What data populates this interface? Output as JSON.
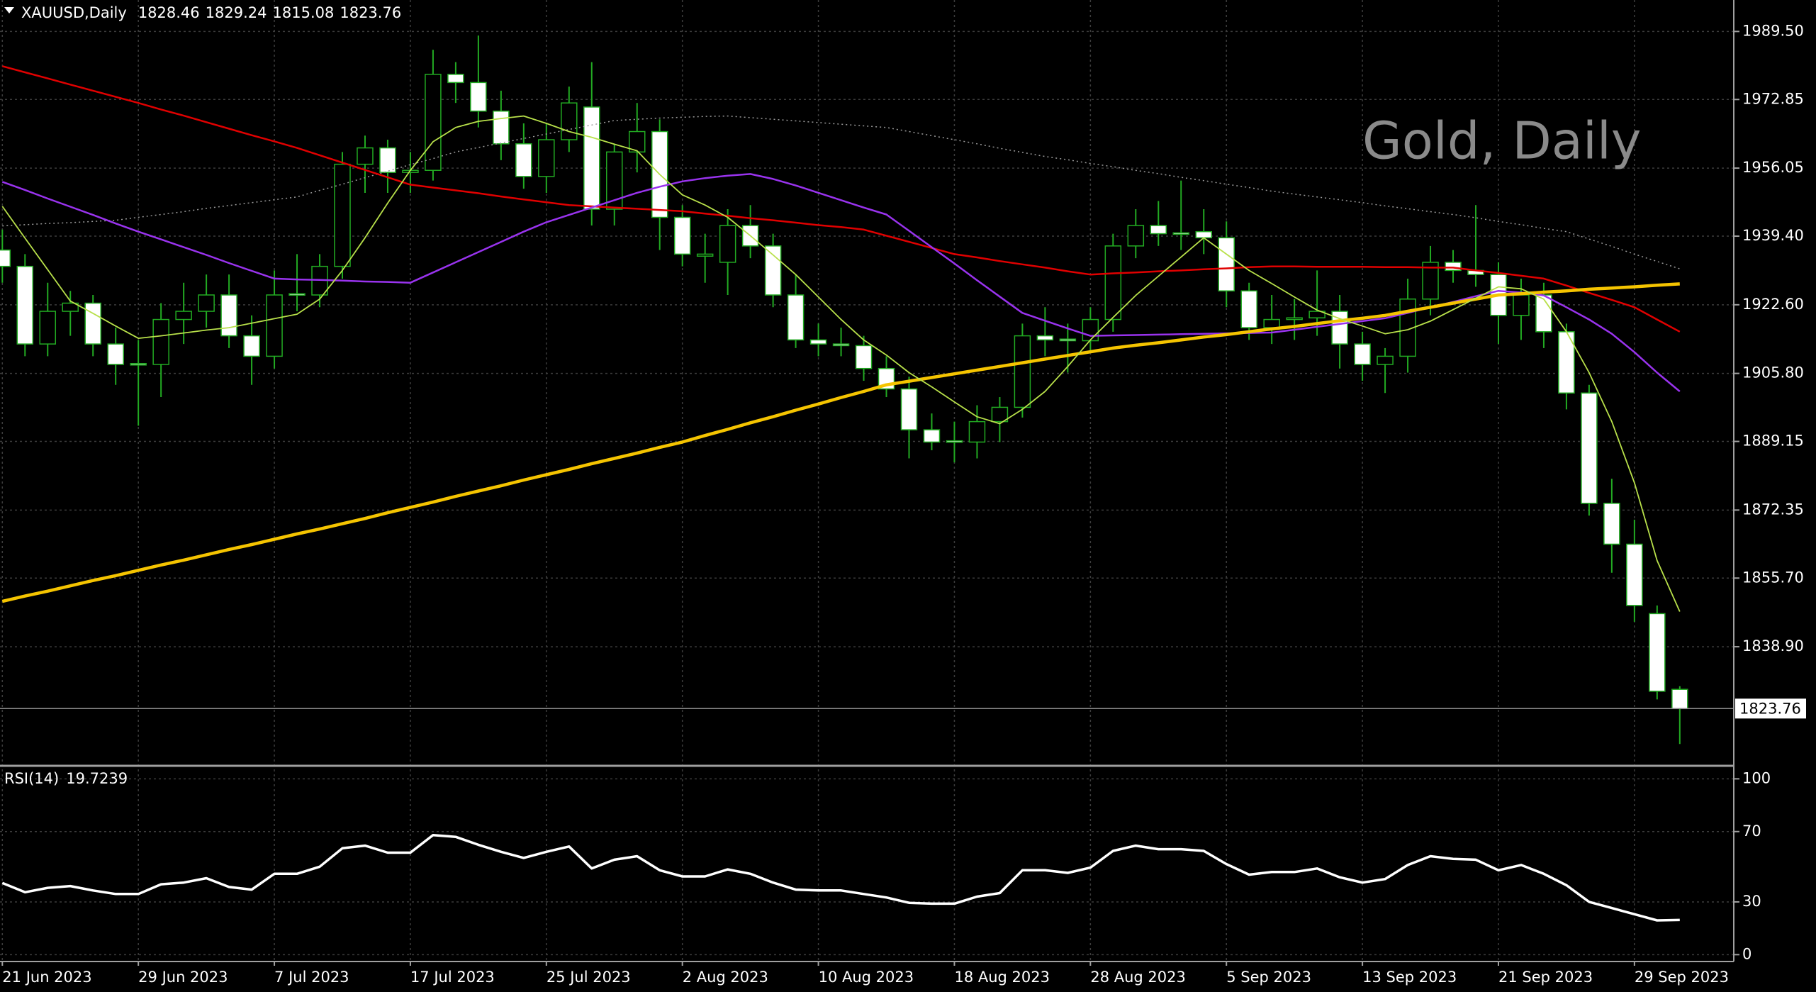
{
  "chart_data": {
    "type": "candlestick",
    "symbol": "XAUUSD,Daily",
    "annotation": "Gold, Daily",
    "categories": [
      "21 Jun 2023",
      null,
      null,
      null,
      null,
      null,
      "29 Jun 2023",
      null,
      null,
      null,
      null,
      null,
      "7 Jul 2023",
      null,
      null,
      null,
      null,
      null,
      "17 Jul 2023",
      null,
      null,
      null,
      null,
      null,
      "25 Jul 2023",
      null,
      null,
      null,
      null,
      null,
      "2 Aug 2023",
      null,
      null,
      null,
      null,
      null,
      "10 Aug 2023",
      null,
      null,
      null,
      null,
      null,
      "18 Aug 2023",
      null,
      null,
      null,
      null,
      null,
      "28 Aug 2023",
      null,
      null,
      null,
      null,
      null,
      "5 Sep 2023",
      null,
      null,
      null,
      null,
      null,
      "13 Sep 2023",
      null,
      null,
      null,
      null,
      null,
      "21 Sep 2023",
      null,
      null,
      null,
      null,
      null,
      "29 Sep 2023",
      null,
      null
    ],
    "open": [
      1936,
      1932,
      1913,
      1921,
      1923,
      1913,
      1908.2,
      1908,
      1919,
      1921,
      1925,
      1915,
      1910,
      1925.3,
      1925,
      1932,
      1957,
      1961,
      1955,
      1955.5,
      1979,
      1977,
      1970,
      1962,
      1954,
      1963,
      1971,
      1946,
      1960,
      1965,
      1944,
      1934.5,
      1933,
      1942,
      1937,
      1925,
      1914,
      1913,
      1912.6,
      1907,
      1902,
      1892,
      1889.3,
      1889,
      1894,
      1897.5,
      1915,
      1914.2,
      1913.8,
      1919,
      1937,
      1942,
      1940.2,
      1940.5,
      1939,
      1926,
      1917,
      1919,
      1919.4,
      1921,
      1913,
      1908,
      1910,
      1924,
      1933,
      1931,
      1930,
      1920,
      1925,
      1916,
      1901,
      1874,
      1864,
      1847,
      1828.46
    ],
    "high": [
      1941,
      1935,
      1928,
      1926,
      1925,
      1917,
      1914,
      1923,
      1928,
      1930,
      1930,
      1920,
      1931,
      1935,
      1935,
      1960,
      1964,
      1963,
      1960,
      1985,
      1982,
      1988.5,
      1975,
      1967,
      1967,
      1976,
      1982,
      1962,
      1972,
      1968,
      1947,
      1940,
      1946,
      1947,
      1940,
      1930,
      1918,
      1917,
      1915,
      1910,
      1905,
      1896,
      1894,
      1898,
      1900,
      1918,
      1922,
      1918,
      1922,
      1940,
      1946,
      1948,
      1953,
      1946,
      1943,
      1928,
      1925,
      1924,
      1931,
      1925,
      1916,
      1912,
      1929,
      1937,
      1936,
      1947,
      1933,
      1929,
      1928,
      1918,
      1903,
      1880,
      1870,
      1849,
      1829.24
    ],
    "low": [
      1928,
      1910,
      1910,
      1915,
      1910,
      1903,
      1893,
      1900,
      1913,
      1917,
      1912,
      1903,
      1907,
      1921,
      1922,
      1929,
      1950,
      1950,
      1950,
      1953,
      1972,
      1966,
      1958,
      1951,
      1950,
      1960,
      1942,
      1942,
      1955,
      1936,
      1932,
      1928,
      1925,
      1934,
      1922,
      1912,
      1910,
      1910,
      1904,
      1900,
      1885,
      1887,
      1884,
      1885,
      1889,
      1895,
      1910,
      1906,
      1911,
      1916,
      1934,
      1937,
      1936,
      1935,
      1922,
      1914,
      1913,
      1914,
      1915,
      1907,
      1904,
      1901,
      1906,
      1920,
      1928,
      1927,
      1913,
      1914,
      1912,
      1897,
      1871,
      1857,
      1845,
      1826,
      1815.08
    ],
    "close": [
      1932,
      1913,
      1921,
      1923,
      1913,
      1908,
      1908,
      1919,
      1921,
      1925,
      1915,
      1910,
      1925,
      1925,
      1932,
      1957,
      1961,
      1955,
      1955.5,
      1979,
      1977,
      1970,
      1962,
      1954,
      1963,
      1972,
      1946,
      1960,
      1965,
      1944,
      1935,
      1935,
      1942,
      1937,
      1925,
      1914,
      1913,
      1912.6,
      1907,
      1902,
      1892,
      1889,
      1889,
      1894,
      1897.5,
      1915,
      1914,
      1913.8,
      1919,
      1937,
      1942,
      1940,
      1940,
      1939,
      1926,
      1917,
      1919,
      1919.4,
      1921,
      1913,
      1908,
      1910,
      1924,
      1933,
      1931,
      1930,
      1920,
      1925,
      1916,
      1901,
      1874,
      1864,
      1849,
      1828,
      1823.76
    ],
    "candle_outline": "#22aa22",
    "bull_body": "#000000",
    "bear_body": "#ffffff",
    "ylim": [
      1810.1,
      1997.2
    ],
    "yticks": [
      {
        "value": 1989.5,
        "label": "1989.50"
      },
      {
        "value": 1972.85,
        "label": "1972.85"
      },
      {
        "value": 1956.05,
        "label": "1956.05"
      },
      {
        "value": 1939.4,
        "label": "1939.40"
      },
      {
        "value": 1922.6,
        "label": "1922.60"
      },
      {
        "value": 1905.8,
        "label": "1905.80"
      },
      {
        "value": 1889.15,
        "label": "1889.15"
      },
      {
        "value": 1872.35,
        "label": "1872.35"
      },
      {
        "value": 1855.7,
        "label": "1855.70"
      },
      {
        "value": 1838.9,
        "label": "1838.90"
      }
    ],
    "grid": true,
    "moving_averages": [
      {
        "color": "#9a9a9a",
        "width": 1.5,
        "dash": "2 4",
        "values": [
          1941.9,
          1942.2,
          1942.5,
          1942.7,
          1943,
          1943.3,
          1944,
          1944.7,
          1945.4,
          1946.2,
          1946.9,
          1947.6,
          1948.3,
          1949,
          1950.6,
          1952.1,
          1953.7,
          1955.3,
          1956.9,
          1958.4,
          1960,
          1961.1,
          1962.2,
          1963.3,
          1964.4,
          1965.5,
          1966.6,
          1967.7,
          1968,
          1968.3,
          1968.5,
          1968.7,
          1968.8,
          1968.4,
          1968,
          1967.6,
          1967.2,
          1966.8,
          1966.4,
          1966,
          1965,
          1964,
          1963,
          1962,
          1960.9,
          1959.9,
          1958.9,
          1958.1,
          1957.2,
          1956.4,
          1955.5,
          1954.7,
          1953.8,
          1953,
          1952.1,
          1951.3,
          1950.4,
          1949.7,
          1949,
          1948.3,
          1947.6,
          1946.8,
          1946.1,
          1945.4,
          1944.7,
          1943.9,
          1943,
          1942.2,
          1941.3,
          1940.5,
          1938.7,
          1936.9,
          1935,
          1933.2,
          1931.4
        ]
      },
      {
        "color": "#e00000",
        "width": 2.5,
        "values": [
          1981,
          1979.5,
          1978,
          1976.5,
          1975,
          1973.5,
          1972,
          1970.4,
          1968.9,
          1967.3,
          1965.7,
          1964.1,
          1962.6,
          1961,
          1959.2,
          1957.4,
          1955.6,
          1953.8,
          1952,
          1951.3,
          1950.6,
          1949.9,
          1949.1,
          1948.4,
          1947.7,
          1947,
          1946.7,
          1946.4,
          1946.1,
          1945.8,
          1945.5,
          1944.9,
          1944.4,
          1943.8,
          1943.3,
          1942.7,
          1942.1,
          1941.6,
          1941,
          1939.5,
          1938,
          1936.5,
          1935,
          1934.2,
          1933.3,
          1932.5,
          1931.7,
          1930.8,
          1930,
          1930.3,
          1930.5,
          1930.8,
          1931,
          1931.3,
          1931.5,
          1931.8,
          1932,
          1932,
          1931.9,
          1931.9,
          1931.9,
          1931.8,
          1931.8,
          1931.7,
          1931.7,
          1931,
          1930.4,
          1929.7,
          1929,
          1927.3,
          1925.5,
          1923.8,
          1922,
          1919,
          1916
        ]
      },
      {
        "color": "#9933ee",
        "width": 2.5,
        "values": [
          1952.7,
          1950.7,
          1948.6,
          1946.6,
          1944.6,
          1942.5,
          1940.5,
          1938.6,
          1936.7,
          1934.8,
          1932.8,
          1930.9,
          1929,
          1928.8,
          1928.7,
          1928.5,
          1928.3,
          1928.2,
          1928,
          1930.5,
          1933,
          1935.5,
          1938,
          1940.5,
          1942.8,
          1944.6,
          1946.4,
          1948.2,
          1950,
          1951.5,
          1952.8,
          1953.6,
          1954.2,
          1954.6,
          1953.4,
          1951.8,
          1950,
          1948.2,
          1946.4,
          1944.7,
          1940.7,
          1936.7,
          1932.7,
          1928.6,
          1924.6,
          1920.6,
          1918.7,
          1916.8,
          1915,
          1915.1,
          1915.2,
          1915.3,
          1915.4,
          1915.5,
          1915.6,
          1915.7,
          1915.8,
          1916.5,
          1917.2,
          1917.9,
          1918.6,
          1919.3,
          1920.6,
          1922,
          1923.3,
          1924.7,
          1926,
          1925.6,
          1924.9,
          1922,
          1919,
          1915.5,
          1911,
          1906,
          1901.4
        ]
      },
      {
        "color": "#f5c400",
        "width": 4.5,
        "values": [
          1850,
          1851.3,
          1852.5,
          1853.8,
          1855.1,
          1856.3,
          1857.6,
          1858.9,
          1860.1,
          1861.4,
          1862.7,
          1863.9,
          1865.2,
          1866.5,
          1867.7,
          1869,
          1870.3,
          1871.7,
          1873,
          1874.3,
          1875.7,
          1877,
          1878.3,
          1879.7,
          1881,
          1882.3,
          1883.7,
          1885,
          1886.3,
          1887.7,
          1889,
          1890.6,
          1892.1,
          1893.7,
          1895.2,
          1896.8,
          1898.3,
          1899.9,
          1901.4,
          1903,
          1903.9,
          1904.8,
          1905.7,
          1906.6,
          1907.5,
          1908.4,
          1909.3,
          1910.2,
          1911.1,
          1912,
          1912.7,
          1913.3,
          1914,
          1914.7,
          1915.3,
          1916,
          1916.7,
          1917.3,
          1918,
          1918.7,
          1919.3,
          1920,
          1921,
          1922,
          1923,
          1924,
          1925,
          1925.3,
          1925.7,
          1926,
          1926.4,
          1926.7,
          1927,
          1927.4,
          1927.7
        ]
      },
      {
        "color": "#b8e04a",
        "width": 1.8,
        "values": [
          1946.7,
          1938.9,
          1931.2,
          1923.5,
          1920.5,
          1917.4,
          1914.4,
          1915,
          1915.7,
          1916.4,
          1917,
          1918.1,
          1919.2,
          1920.3,
          1924,
          1931,
          1939,
          1947.5,
          1955.5,
          1962.5,
          1966,
          1967.5,
          1968.2,
          1968.8,
          1967,
          1965,
          1963.6,
          1961.9,
          1960.3,
          1954.5,
          1949.5,
          1947,
          1944,
          1939.5,
          1934.8,
          1930,
          1924.5,
          1919,
          1914,
          1910.3,
          1906,
          1902.5,
          1898.8,
          1895.2,
          1893.5,
          1897,
          1901.4,
          1907.5,
          1914,
          1919.5,
          1924.9,
          1929.6,
          1934.3,
          1939,
          1935,
          1931,
          1927.8,
          1924.5,
          1921.3,
          1919.2,
          1917.4,
          1915.5,
          1916.5,
          1918.6,
          1921.4,
          1924.2,
          1927,
          1926.5,
          1924,
          1916,
          1906,
          1894,
          1879,
          1860,
          1847.5
        ]
      }
    ],
    "indicator": {
      "name": "RSI(14)",
      "color": "#ffffff",
      "ylim": [
        -3.9,
        106.6
      ],
      "yticks": [
        100,
        70,
        30,
        0
      ],
      "values": [
        40.8,
        35.5,
        38,
        39,
        36.5,
        34.5,
        34.5,
        40,
        41,
        43.5,
        38.5,
        37,
        46,
        46,
        50,
        60.5,
        62,
        58,
        58,
        68,
        67,
        62.5,
        58.5,
        55,
        58.5,
        61.5,
        49,
        54,
        56,
        48,
        44.5,
        44.5,
        48.5,
        46,
        41,
        37,
        36.5,
        36.5,
        34.5,
        32.5,
        29.5,
        29,
        29,
        33,
        35,
        48,
        48,
        46.5,
        49.5,
        59,
        62,
        60,
        60,
        59,
        51.5,
        45.5,
        47,
        47,
        49,
        44,
        41,
        43,
        51,
        56,
        54.5,
        54,
        48,
        51,
        46,
        39.5,
        30,
        26.5,
        23,
        19.5,
        19.7239
      ]
    }
  }
}
